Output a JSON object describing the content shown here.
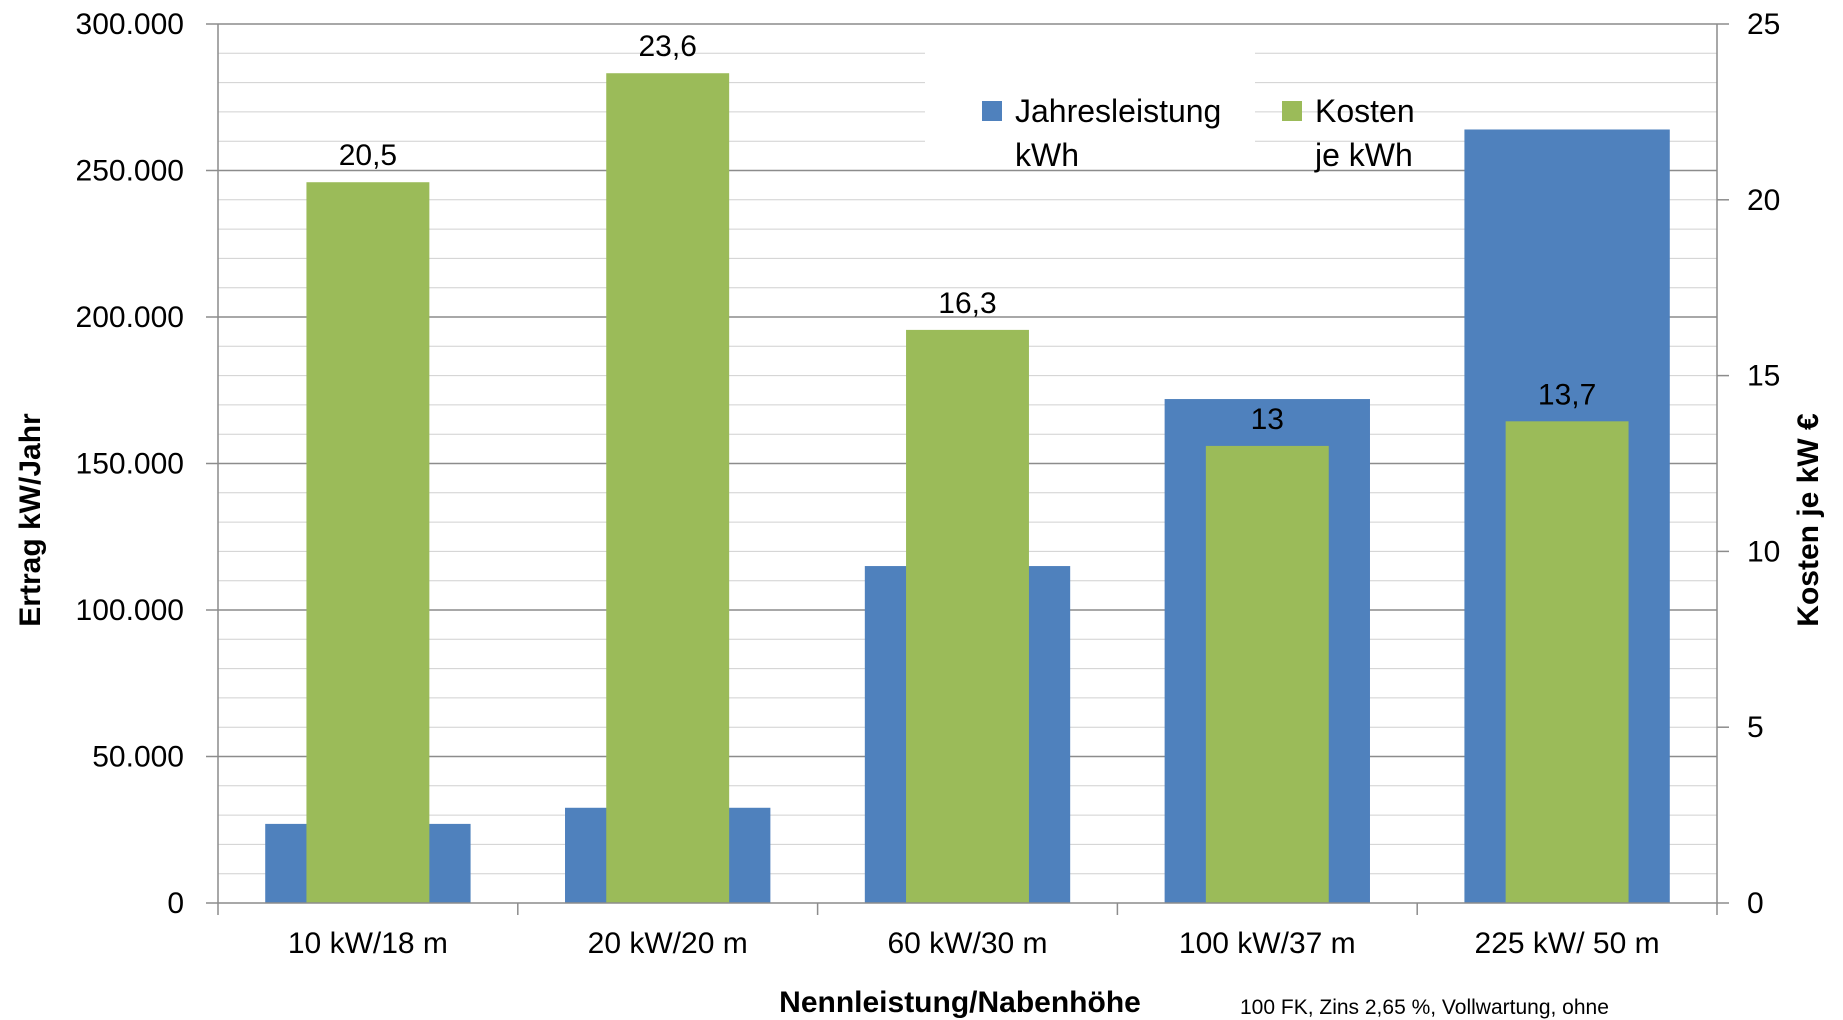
{
  "chart_data": {
    "type": "bar",
    "categories": [
      "10 kW/18 m",
      "20 kW/20 m",
      "60 kW/30 m",
      "100 kW/37 m",
      "225 kW/ 50 m"
    ],
    "series": [
      {
        "name": "Jahresleistung kWh",
        "legend_lines": [
          "Jahresleistung",
          "kWh"
        ],
        "axis": "left",
        "color": "#4F81BD",
        "values": [
          27000,
          32500,
          115000,
          172000,
          264000
        ]
      },
      {
        "name": "Kosten je kWh",
        "legend_lines": [
          "Kosten",
          "je kWh"
        ],
        "axis": "right",
        "color": "#9BBB59",
        "values": [
          20.5,
          23.6,
          16.3,
          13,
          13.7
        ],
        "data_labels": [
          "20,5",
          "23,6",
          "16,3",
          "13",
          "13,7"
        ]
      }
    ],
    "y_left": {
      "title": "Ertrag  kW/Jahr",
      "ylim": [
        0,
        300000
      ],
      "ticks": [
        0,
        50000,
        100000,
        150000,
        200000,
        250000,
        300000
      ],
      "tick_labels": [
        "0",
        "50.000",
        "100.000",
        "150.000",
        "200.000",
        "250.000",
        "300.000"
      ]
    },
    "y_right": {
      "title": "Kosten je kW €",
      "ylim": [
        0,
        25
      ],
      "ticks": [
        0,
        5,
        10,
        15,
        20,
        25
      ],
      "tick_labels": [
        "0",
        "5",
        "10",
        "15",
        "20",
        "25"
      ]
    },
    "xlabel": "Nennleistung/Nabenhöhe",
    "note": "100 FK, Zins 2,65 %, Vollwartung, ohne",
    "legend_position": "top-right",
    "grid": true
  }
}
